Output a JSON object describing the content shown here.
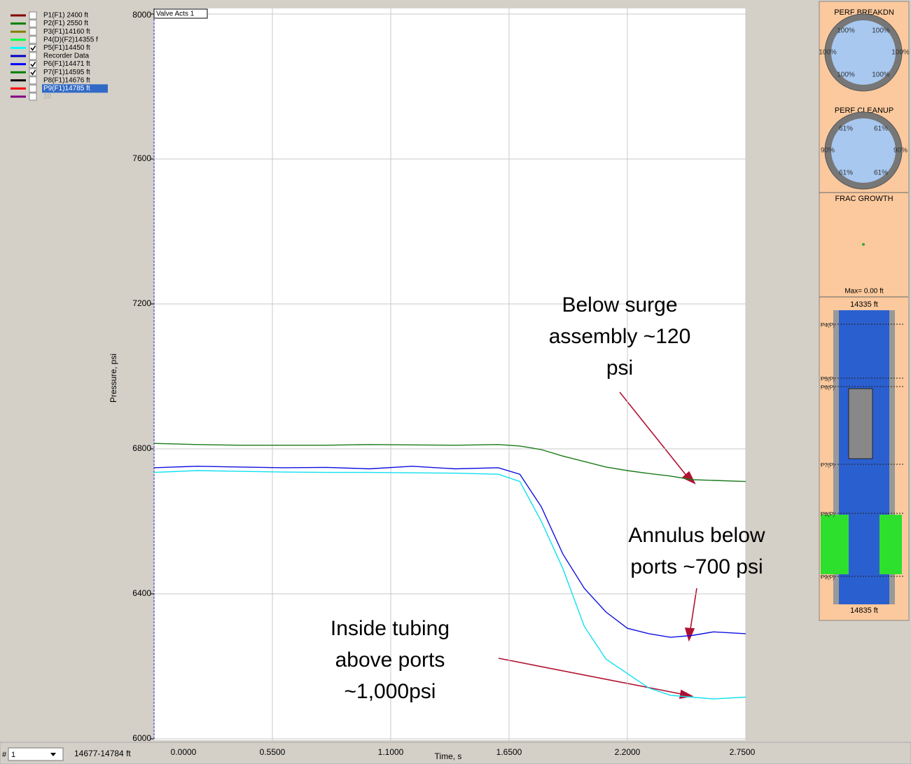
{
  "legend": [
    {
      "label": "P1(F1) 2400 ft",
      "color": "#800000",
      "checked": false
    },
    {
      "label": "P2(F1) 2550 ft",
      "color": "#008000",
      "checked": false
    },
    {
      "label": "P3(F1)14160 ft",
      "color": "#808000",
      "checked": false
    },
    {
      "label": "P4(D)(F2)14355 f",
      "color": "#00ff40",
      "checked": false
    },
    {
      "label": "P5(F1)14450 ft",
      "color": "#00ffff",
      "checked": true
    },
    {
      "label": "Recorder Data",
      "color": "#0000c0",
      "checked": false
    },
    {
      "label": "P6(F1)14471 ft",
      "color": "#0000ff",
      "checked": true
    },
    {
      "label": "P7(F1)14595 ft",
      "color": "#008000",
      "checked": true
    },
    {
      "label": "P8(F1)14676 ft",
      "color": "#000000",
      "checked": false
    },
    {
      "label": "P9(F1)14785 ft",
      "color": "#ff0000",
      "checked": false
    },
    {
      "label": "10",
      "color": "#800080",
      "checked": false
    }
  ],
  "chart_data": {
    "type": "line",
    "ylabel": "Pressure, psi",
    "xlabel": "Time, s",
    "marker_label": "Valve Acts 1",
    "xlim": [
      0,
      2.75
    ],
    "ylim": [
      6000,
      8000
    ],
    "grid": true,
    "xticks": [
      {
        "value": 0,
        "label": "0.0000"
      },
      {
        "value": 0.55,
        "label": "0.5500"
      },
      {
        "value": 1.1,
        "label": "1.1000"
      },
      {
        "value": 1.65,
        "label": "1.6500"
      },
      {
        "value": 2.2,
        "label": "2.2000"
      },
      {
        "value": 2.75,
        "label": "2.7500"
      }
    ],
    "yticks": [
      6000,
      6400,
      6800,
      7200,
      7600,
      8000
    ],
    "x": [
      0,
      0.2,
      0.4,
      0.6,
      0.8,
      1.0,
      1.2,
      1.4,
      1.6,
      1.7,
      1.8,
      1.9,
      2.0,
      2.1,
      2.2,
      2.3,
      2.4,
      2.5,
      2.6,
      2.75
    ],
    "series": [
      {
        "color": "#1a7a1a",
        "values": [
          6815,
          6812,
          6810,
          6810,
          6810,
          6812,
          6811,
          6810,
          6812,
          6808,
          6798,
          6780,
          6765,
          6750,
          6740,
          6732,
          6725,
          6715,
          6713,
          6710
        ]
      },
      {
        "color": "#1010e0",
        "values": [
          6748,
          6752,
          6750,
          6748,
          6749,
          6745,
          6752,
          6745,
          6748,
          6730,
          6640,
          6510,
          6415,
          6350,
          6305,
          6290,
          6280,
          6285,
          6295,
          6290
        ]
      },
      {
        "color": "#10e0f0",
        "values": [
          6735,
          6740,
          6738,
          6736,
          6735,
          6735,
          6734,
          6733,
          6730,
          6710,
          6600,
          6470,
          6310,
          6220,
          6180,
          6140,
          6120,
          6115,
          6110,
          6115
        ]
      }
    ]
  },
  "annotations": [
    "Below surge\nassembly ~120\npsi",
    "Annulus below\nports ~700 psi",
    "Inside tubing\nabove ports\n~1,000psi"
  ],
  "side_panel": {
    "breakdown": {
      "title": "PERF BREAKDN",
      "labels": [
        "100%",
        "100%",
        "100%",
        "100%",
        "100%",
        "100%"
      ]
    },
    "cleanup": {
      "title": "PERF CLEANUP",
      "labels": [
        "61%",
        "61%",
        "90%",
        "90%",
        "61%",
        "61%"
      ]
    },
    "frac_title": "FRAC GROWTH",
    "frac_max": "Max=  0.00 ft",
    "well_top": "14335 ft",
    "well_bottom": "14835 ft",
    "well_labels": [
      "P4(F)",
      "P5(F)",
      "P6(F)",
      "P7(F)",
      "P8(F)",
      "P9(F)"
    ]
  },
  "footer": {
    "hash": "#",
    "selector": "1",
    "range": "14677-14784 ft"
  }
}
